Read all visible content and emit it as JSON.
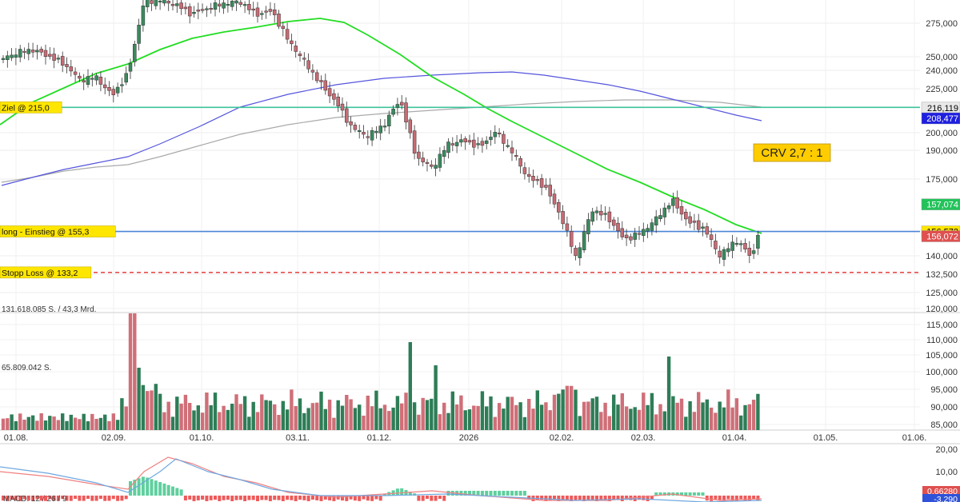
{
  "chart_data": {
    "type": "candlestick",
    "price_axis": {
      "ticks": [
        {
          "value": 275000,
          "label": "275,000"
        },
        {
          "value": 250000,
          "label": "250,000"
        },
        {
          "value": 240000,
          "label": "240,000"
        },
        {
          "value": 225000,
          "label": "225,000"
        },
        {
          "value": 200000,
          "label": "200,000"
        },
        {
          "value": 190000,
          "label": "190,000"
        },
        {
          "value": 175000,
          "label": "175,000"
        },
        {
          "value": 140000,
          "label": "140,000"
        },
        {
          "value": 132500,
          "label": "132,500"
        },
        {
          "value": 125000,
          "label": "125,000"
        }
      ]
    },
    "volume_axis": {
      "ticks": [
        {
          "value": 120000,
          "label": "120,000"
        },
        {
          "value": 115000,
          "label": "115,000"
        },
        {
          "value": 110000,
          "label": "110,000"
        },
        {
          "value": 105000,
          "label": "105,000"
        },
        {
          "value": 100000,
          "label": "100,000"
        },
        {
          "value": 95000,
          "label": "95,000"
        },
        {
          "value": 90000,
          "label": "90,000"
        },
        {
          "value": 85000,
          "label": "85,000"
        }
      ],
      "total_label": "131.618.085 S. / 43,3 Mrd.",
      "avg_label": "65.809.042 S."
    },
    "macd_axis": {
      "ticks": [
        {
          "value": 20,
          "label": "20,00"
        },
        {
          "value": 10,
          "label": "10,00"
        }
      ],
      "title": "MACD: 12 / 26 / 9",
      "badges": [
        {
          "label": "0,66280",
          "value": 0.66,
          "color": "#e05050"
        },
        {
          "label": "-3,290",
          "value": -3.29,
          "color": "#2f52d8"
        }
      ]
    },
    "x_ticks": [
      "01.08.",
      "02.09.",
      "01.10.",
      "03.11.",
      "01.12.",
      "2026",
      "02.02.",
      "02.03.",
      "01.04.",
      "01.05.",
      "01.06."
    ],
    "levels": [
      {
        "label": "Ziel @ 215,0",
        "value": 215000,
        "color": "#3cc39a",
        "style": "solid",
        "badge": "216,119",
        "badge_color": "#e8e8e8",
        "badge_text_color": "#000000"
      },
      {
        "label": "long - Einstieg @ 155,3",
        "value": 155300,
        "color": "#4a86d8",
        "style": "solid",
        "badge": "156,573",
        "badge_color": "#ffe600",
        "badge_text_color": "#000000"
      },
      {
        "label": "Stopp Loss @ 133,2",
        "value": 133200,
        "color": "#e84c4c",
        "style": "dashed"
      }
    ],
    "value_badges": [
      {
        "label": "208,477",
        "value": 208477,
        "color": "#1f1fe0",
        "text_color": "#ffffff"
      },
      {
        "label": "157,074",
        "value": 157800,
        "color": "#22c35a",
        "text_color": "#ffffff"
      },
      {
        "label": "156,072",
        "value": 152300,
        "color": "#e05050",
        "text_color": "#ffffff"
      }
    ],
    "annotation": {
      "label": "CRV 2,7 : 1",
      "color": "#ffcc00"
    },
    "candles": {
      "dates": [
        "01.08.",
        "02.09.",
        "01.10.",
        "03.11.",
        "01.12.",
        "2026",
        "02.02.",
        "02.03.",
        "01.04."
      ],
      "closes": [
        245000,
        225000,
        280000,
        268000,
        200000,
        198000,
        149000,
        152000,
        157000
      ]
    },
    "ma_fast_color": "#22dd22",
    "ma_mid_color": "#5555dd",
    "ma_slow_color": "#aaaaaa",
    "up_color": "#3a8a5e",
    "down_color": "#c76b74",
    "vol_up_color": "#2e7d57",
    "vol_down_color": "#cf6f78"
  }
}
